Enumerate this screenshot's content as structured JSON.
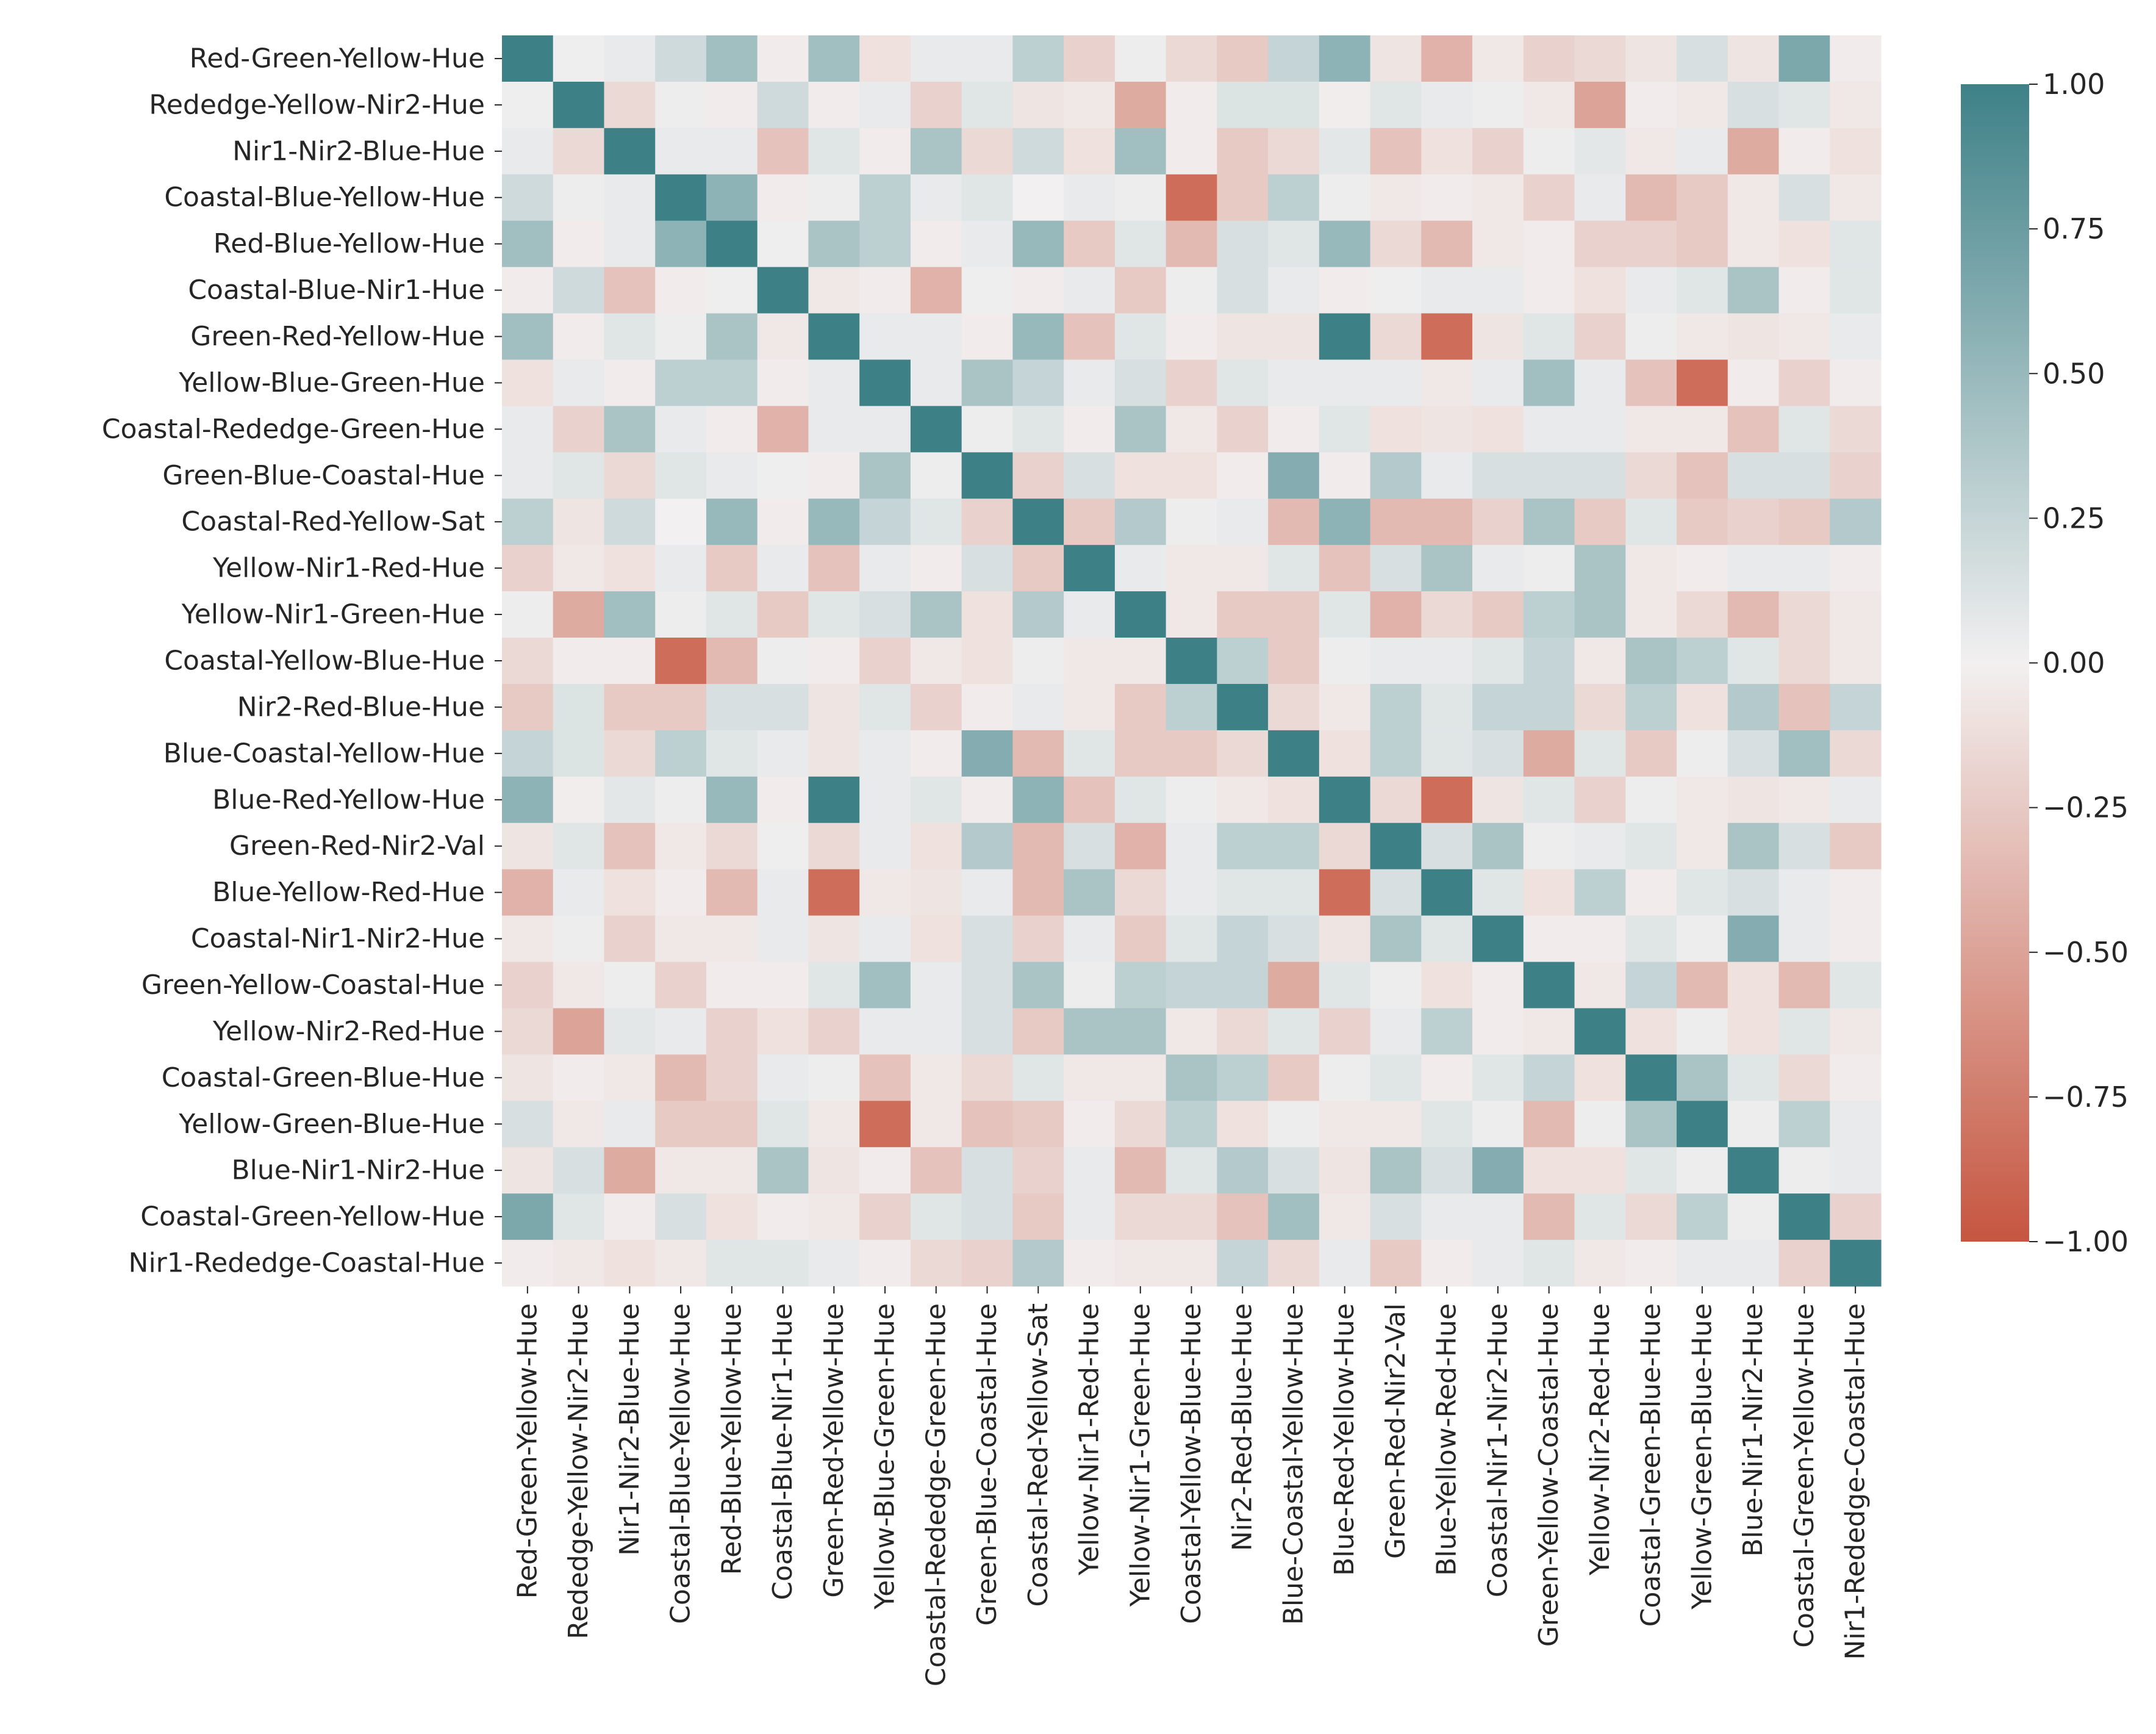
{
  "chart_data": {
    "type": "heatmap",
    "title": "",
    "xlabel": "",
    "ylabel": "",
    "labels": [
      "Red-Green-Yellow-Hue",
      "Rededge-Yellow-Nir2-Hue",
      "Nir1-Nir2-Blue-Hue",
      "Coastal-Blue-Yellow-Hue",
      "Red-Blue-Yellow-Hue",
      "Coastal-Blue-Nir1-Hue",
      "Green-Red-Yellow-Hue",
      "Yellow-Blue-Green-Hue",
      "Coastal-Rededge-Green-Hue",
      "Green-Blue-Coastal-Hue",
      "Coastal-Red-Yellow-Sat",
      "Yellow-Nir1-Red-Hue",
      "Yellow-Nir1-Green-Hue",
      "Coastal-Yellow-Blue-Hue",
      "Nir2-Red-Blue-Hue",
      "Blue-Coastal-Yellow-Hue",
      "Blue-Red-Yellow-Hue",
      "Green-Red-Nir2-Val",
      "Blue-Yellow-Red-Hue",
      "Coastal-Nir1-Nir2-Hue",
      "Green-Yellow-Coastal-Hue",
      "Yellow-Nir2-Red-Hue",
      "Coastal-Green-Blue-Hue",
      "Yellow-Green-Blue-Hue",
      "Blue-Nir1-Nir2-Hue",
      "Coastal-Green-Yellow-Hue",
      "Nir1-Rededge-Coastal-Hue"
    ],
    "values": [
      [
        1.0,
        0.02,
        0.05,
        0.2,
        0.45,
        -0.03,
        0.45,
        -0.1,
        0.05,
        0.05,
        0.3,
        -0.2,
        0.03,
        -0.15,
        -0.25,
        0.25,
        0.55,
        -0.08,
        -0.4,
        -0.05,
        -0.2,
        -0.15,
        -0.08,
        0.15,
        -0.08,
        0.65,
        -0.03
      ],
      [
        0.02,
        1.0,
        -0.15,
        0.03,
        -0.03,
        0.2,
        -0.03,
        0.05,
        -0.2,
        0.1,
        -0.08,
        -0.05,
        -0.45,
        -0.03,
        0.12,
        0.12,
        -0.02,
        0.1,
        0.05,
        0.03,
        -0.05,
        -0.5,
        -0.03,
        -0.05,
        0.15,
        0.1,
        -0.05
      ],
      [
        0.05,
        -0.15,
        1.0,
        0.05,
        0.05,
        -0.3,
        0.1,
        -0.03,
        0.4,
        -0.15,
        0.2,
        -0.1,
        0.45,
        -0.03,
        -0.25,
        -0.15,
        0.08,
        -0.3,
        -0.1,
        -0.2,
        0.03,
        0.08,
        -0.05,
        0.05,
        -0.45,
        -0.03,
        -0.1
      ],
      [
        0.2,
        0.03,
        0.05,
        1.0,
        0.55,
        -0.03,
        0.03,
        0.3,
        0.05,
        0.1,
        0.0,
        0.05,
        0.03,
        -0.85,
        -0.25,
        0.3,
        0.03,
        -0.05,
        -0.03,
        -0.05,
        -0.2,
        0.05,
        -0.35,
        -0.25,
        -0.05,
        0.15,
        -0.05
      ],
      [
        0.45,
        -0.03,
        0.05,
        0.55,
        1.0,
        0.02,
        0.4,
        0.3,
        -0.03,
        0.05,
        0.5,
        -0.25,
        0.1,
        -0.35,
        0.15,
        0.1,
        0.5,
        -0.15,
        -0.35,
        -0.05,
        -0.03,
        -0.2,
        -0.2,
        -0.25,
        -0.05,
        -0.1,
        0.1
      ],
      [
        -0.03,
        0.2,
        -0.3,
        -0.03,
        0.02,
        1.0,
        -0.05,
        -0.03,
        -0.4,
        0.02,
        -0.03,
        0.05,
        -0.25,
        0.03,
        0.15,
        0.05,
        -0.03,
        0.02,
        0.05,
        0.05,
        -0.03,
        -0.1,
        0.05,
        0.1,
        0.4,
        -0.03,
        0.1
      ],
      [
        0.45,
        -0.03,
        0.1,
        0.03,
        0.4,
        -0.05,
        1.0,
        0.05,
        0.05,
        -0.03,
        0.5,
        -0.3,
        0.1,
        -0.03,
        -0.08,
        -0.08,
        1.0,
        -0.15,
        -0.85,
        -0.08,
        0.1,
        -0.2,
        0.03,
        -0.05,
        -0.08,
        -0.05,
        0.05
      ],
      [
        -0.1,
        0.05,
        -0.03,
        0.3,
        0.3,
        -0.03,
        0.05,
        1.0,
        0.05,
        0.4,
        0.25,
        0.05,
        0.15,
        -0.2,
        0.1,
        0.05,
        0.05,
        0.05,
        -0.05,
        0.05,
        0.45,
        0.05,
        -0.3,
        -0.85,
        -0.03,
        -0.2,
        -0.03
      ],
      [
        0.05,
        -0.2,
        0.4,
        0.05,
        -0.03,
        -0.4,
        0.05,
        0.05,
        1.0,
        0.03,
        0.1,
        -0.03,
        0.4,
        -0.05,
        -0.2,
        -0.03,
        0.1,
        -0.1,
        -0.08,
        -0.1,
        0.05,
        0.05,
        -0.05,
        -0.05,
        -0.3,
        0.1,
        -0.15
      ],
      [
        0.05,
        0.1,
        -0.15,
        0.1,
        0.05,
        0.02,
        -0.03,
        0.4,
        0.03,
        1.0,
        -0.2,
        0.15,
        -0.1,
        -0.1,
        -0.03,
        0.6,
        -0.03,
        0.35,
        0.05,
        0.15,
        0.15,
        0.15,
        -0.15,
        -0.3,
        0.15,
        0.15,
        -0.2
      ],
      [
        0.3,
        -0.08,
        0.2,
        0.0,
        0.5,
        -0.03,
        0.5,
        0.25,
        0.1,
        -0.2,
        1.0,
        -0.25,
        0.35,
        0.03,
        0.05,
        -0.35,
        0.55,
        -0.35,
        -0.35,
        -0.2,
        0.4,
        -0.25,
        0.1,
        -0.25,
        -0.2,
        -0.25,
        0.35
      ],
      [
        -0.2,
        -0.05,
        -0.1,
        0.05,
        -0.25,
        0.05,
        -0.3,
        0.05,
        -0.03,
        0.15,
        -0.25,
        1.0,
        0.05,
        -0.05,
        -0.05,
        0.1,
        -0.3,
        0.15,
        0.4,
        0.05,
        0.03,
        0.4,
        -0.05,
        -0.03,
        0.05,
        0.05,
        -0.03
      ],
      [
        0.03,
        -0.45,
        0.45,
        0.03,
        0.1,
        -0.25,
        0.1,
        0.15,
        0.4,
        -0.1,
        0.35,
        0.05,
        1.0,
        -0.05,
        -0.25,
        -0.25,
        0.1,
        -0.4,
        -0.15,
        -0.25,
        0.3,
        0.4,
        -0.05,
        -0.15,
        -0.35,
        -0.15,
        -0.05
      ],
      [
        -0.15,
        -0.03,
        -0.03,
        -0.85,
        -0.35,
        0.03,
        -0.03,
        -0.2,
        -0.05,
        -0.1,
        0.03,
        -0.05,
        -0.05,
        1.0,
        0.3,
        -0.25,
        0.03,
        0.05,
        0.05,
        0.1,
        0.25,
        -0.05,
        0.4,
        0.3,
        0.1,
        -0.15,
        -0.05
      ],
      [
        -0.25,
        0.12,
        -0.25,
        -0.25,
        0.15,
        0.15,
        -0.08,
        0.1,
        -0.2,
        -0.03,
        0.05,
        -0.05,
        -0.25,
        0.3,
        1.0,
        -0.15,
        -0.05,
        0.3,
        0.1,
        0.25,
        0.25,
        -0.15,
        0.3,
        -0.1,
        0.35,
        -0.3,
        0.25
      ],
      [
        0.25,
        0.12,
        -0.15,
        0.3,
        0.1,
        0.05,
        -0.08,
        0.05,
        -0.03,
        0.6,
        -0.35,
        0.1,
        -0.25,
        -0.25,
        -0.15,
        1.0,
        -0.1,
        0.3,
        0.1,
        0.15,
        -0.45,
        0.1,
        -0.25,
        0.03,
        0.15,
        0.45,
        -0.15
      ],
      [
        0.55,
        -0.02,
        0.08,
        0.03,
        0.5,
        -0.03,
        1.0,
        0.05,
        0.1,
        -0.03,
        0.55,
        -0.3,
        0.1,
        0.03,
        -0.05,
        -0.1,
        1.0,
        -0.15,
        -0.85,
        -0.08,
        0.1,
        -0.2,
        0.03,
        -0.05,
        -0.08,
        -0.05,
        0.05
      ],
      [
        -0.08,
        0.1,
        -0.3,
        -0.05,
        -0.15,
        0.02,
        -0.15,
        0.05,
        -0.1,
        0.35,
        -0.35,
        0.15,
        -0.4,
        0.05,
        0.3,
        0.3,
        -0.15,
        1.0,
        0.15,
        0.4,
        0.03,
        0.05,
        0.1,
        -0.05,
        0.4,
        0.15,
        -0.25
      ],
      [
        -0.4,
        0.05,
        -0.1,
        -0.03,
        -0.35,
        0.05,
        -0.85,
        -0.05,
        -0.08,
        0.05,
        -0.35,
        0.4,
        -0.15,
        0.05,
        0.1,
        0.1,
        -0.85,
        0.15,
        1.0,
        0.1,
        -0.1,
        0.3,
        -0.03,
        0.1,
        0.15,
        0.05,
        -0.03
      ],
      [
        -0.05,
        0.03,
        -0.2,
        -0.05,
        -0.05,
        0.05,
        -0.08,
        0.05,
        -0.1,
        0.15,
        -0.2,
        0.05,
        -0.25,
        0.1,
        0.25,
        0.15,
        -0.08,
        0.4,
        0.1,
        1.0,
        -0.03,
        -0.03,
        0.1,
        0.03,
        0.6,
        0.05,
        -0.03
      ],
      [
        -0.2,
        -0.05,
        0.03,
        -0.2,
        -0.03,
        -0.03,
        0.1,
        0.45,
        0.05,
        0.15,
        0.4,
        0.03,
        0.3,
        0.25,
        0.25,
        -0.45,
        0.1,
        0.03,
        -0.1,
        -0.03,
        1.0,
        -0.05,
        0.25,
        -0.35,
        -0.1,
        -0.35,
        0.1
      ],
      [
        -0.15,
        -0.5,
        0.08,
        0.05,
        -0.2,
        -0.1,
        -0.2,
        0.05,
        0.05,
        0.15,
        -0.25,
        0.4,
        0.4,
        -0.05,
        -0.15,
        0.1,
        -0.2,
        0.05,
        0.3,
        -0.03,
        -0.05,
        1.0,
        -0.1,
        0.03,
        -0.1,
        0.1,
        -0.05
      ],
      [
        -0.08,
        -0.03,
        -0.05,
        -0.35,
        -0.2,
        0.05,
        0.03,
        -0.3,
        -0.05,
        -0.15,
        0.1,
        -0.05,
        -0.05,
        0.4,
        0.3,
        -0.25,
        0.03,
        0.1,
        -0.03,
        0.1,
        0.25,
        -0.1,
        1.0,
        0.4,
        0.1,
        -0.15,
        -0.03
      ],
      [
        0.15,
        -0.05,
        0.05,
        -0.25,
        -0.25,
        0.1,
        -0.05,
        -0.85,
        -0.05,
        -0.3,
        -0.25,
        -0.03,
        -0.15,
        0.3,
        -0.1,
        0.03,
        -0.05,
        -0.05,
        0.1,
        0.03,
        -0.35,
        0.03,
        0.4,
        1.0,
        0.03,
        0.3,
        0.05
      ],
      [
        -0.08,
        0.15,
        -0.45,
        -0.05,
        -0.05,
        0.4,
        -0.08,
        -0.03,
        -0.3,
        0.15,
        -0.2,
        0.05,
        -0.35,
        0.1,
        0.35,
        0.15,
        -0.08,
        0.4,
        0.15,
        0.6,
        -0.1,
        -0.1,
        0.1,
        0.03,
        1.0,
        0.03,
        0.05
      ],
      [
        0.65,
        0.1,
        -0.03,
        0.15,
        -0.1,
        -0.03,
        -0.05,
        -0.2,
        0.1,
        0.15,
        -0.25,
        0.05,
        -0.15,
        -0.15,
        -0.3,
        0.45,
        -0.05,
        0.15,
        0.05,
        0.05,
        -0.35,
        0.1,
        -0.15,
        0.3,
        0.03,
        1.0,
        -0.2
      ],
      [
        -0.03,
        -0.05,
        -0.1,
        -0.05,
        0.1,
        0.1,
        0.05,
        -0.03,
        -0.15,
        -0.2,
        0.35,
        -0.03,
        -0.05,
        -0.05,
        0.25,
        -0.15,
        0.05,
        -0.25,
        -0.03,
        0.05,
        0.1,
        -0.05,
        -0.03,
        0.05,
        0.05,
        -0.2,
        1.0
      ]
    ],
    "colorbar": {
      "min": -1.0,
      "max": 1.0,
      "ticks": [
        1.0,
        0.75,
        0.5,
        0.25,
        0.0,
        -0.25,
        -0.5,
        -0.75,
        -1.0
      ],
      "tick_labels": [
        "1.00",
        "0.75",
        "0.50",
        "0.25",
        "0.00",
        "−0.25",
        "−0.50",
        "−0.75",
        "−1.00"
      ],
      "low_color": "#c65640",
      "mid_color": "#f2f0f0",
      "high_color": "#3d8187"
    }
  }
}
